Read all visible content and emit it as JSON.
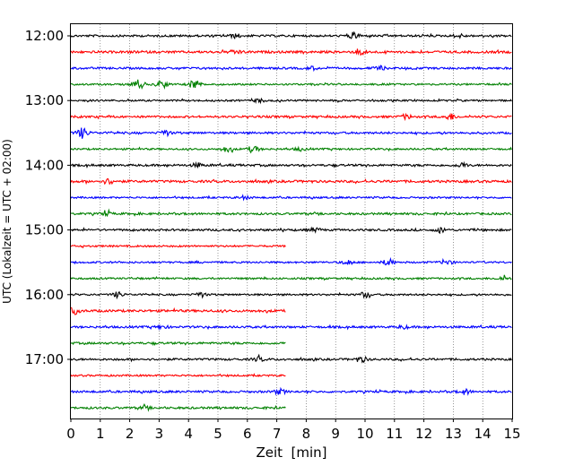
{
  "chart_data": {
    "type": "line",
    "title": "",
    "xlabel": "Zeit  [min]",
    "ylabel": "UTC (Lokalzeit = UTC + 02:00)",
    "xlim": [
      0,
      15
    ],
    "x_ticks": [
      "0",
      "1",
      "2",
      "3",
      "4",
      "5",
      "6",
      "7",
      "8",
      "9",
      "10",
      "11",
      "12",
      "13",
      "14",
      "15"
    ],
    "y_tick_labels": [
      "12:00",
      "13:00",
      "14:00",
      "15:00",
      "16:00",
      "17:00"
    ],
    "grid": "vertical dotted",
    "trace_colors": [
      "#000000",
      "#ff0000",
      "#0000ff",
      "#008000"
    ],
    "traces": [
      {
        "start": "12:00",
        "color": "#000000",
        "end_min": 15,
        "amplitude": 0.35,
        "events": [
          [
            5.6,
            0.6
          ],
          [
            9.6,
            1.0
          ],
          [
            13.2,
            0.5
          ]
        ]
      },
      {
        "start": "12:15",
        "color": "#ff0000",
        "end_min": 15,
        "amplitude": 0.4,
        "events": [
          [
            5.6,
            0.6
          ],
          [
            9.9,
            0.8
          ]
        ]
      },
      {
        "start": "12:30",
        "color": "#0000ff",
        "end_min": 15,
        "amplitude": 0.35,
        "events": [
          [
            8.2,
            0.5
          ],
          [
            10.5,
            0.6
          ]
        ]
      },
      {
        "start": "12:45",
        "color": "#008000",
        "end_min": 15,
        "amplitude": 0.3,
        "events": [
          [
            2.3,
            1.6
          ],
          [
            3.1,
            1.2
          ],
          [
            4.2,
            1.6
          ]
        ]
      },
      {
        "start": "13:00",
        "color": "#000000",
        "end_min": 15,
        "amplitude": 0.3,
        "events": [
          [
            6.4,
            0.5
          ]
        ]
      },
      {
        "start": "13:15",
        "color": "#ff0000",
        "end_min": 15,
        "amplitude": 0.35,
        "events": [
          [
            11.4,
            0.7
          ],
          [
            12.9,
            1.0
          ]
        ]
      },
      {
        "start": "13:30",
        "color": "#0000ff",
        "end_min": 15,
        "amplitude": 0.35,
        "events": [
          [
            0.4,
            1.7
          ],
          [
            3.2,
            0.9
          ]
        ]
      },
      {
        "start": "13:45",
        "color": "#008000",
        "end_min": 15,
        "amplitude": 0.3,
        "events": [
          [
            5.3,
            0.9
          ],
          [
            6.2,
            1.1
          ],
          [
            7.8,
            0.5
          ]
        ]
      },
      {
        "start": "14:00",
        "color": "#000000",
        "end_min": 15,
        "amplitude": 0.35,
        "events": [
          [
            4.3,
            0.6
          ],
          [
            13.3,
            0.7
          ]
        ]
      },
      {
        "start": "14:15",
        "color": "#ff0000",
        "end_min": 15,
        "amplitude": 0.4,
        "events": [
          [
            1.3,
            0.9
          ]
        ]
      },
      {
        "start": "14:30",
        "color": "#0000ff",
        "end_min": 15,
        "amplitude": 0.3,
        "events": [
          [
            5.9,
            0.5
          ]
        ]
      },
      {
        "start": "14:45",
        "color": "#008000",
        "end_min": 15,
        "amplitude": 0.35,
        "events": [
          [
            1.2,
            0.5
          ]
        ]
      },
      {
        "start": "15:00",
        "color": "#000000",
        "end_min": 15,
        "amplitude": 0.35,
        "events": [
          [
            8.3,
            0.6
          ],
          [
            12.6,
            0.7
          ]
        ]
      },
      {
        "start": "15:15",
        "color": "#ff0000",
        "end_min": 7.3,
        "amplitude": 0.3,
        "events": []
      },
      {
        "start": "15:30",
        "color": "#0000ff",
        "end_min": 15,
        "amplitude": 0.3,
        "events": [
          [
            9.4,
            0.8
          ],
          [
            10.8,
            1.1
          ],
          [
            12.8,
            0.7
          ]
        ]
      },
      {
        "start": "15:45",
        "color": "#008000",
        "end_min": 15,
        "amplitude": 0.3,
        "events": [
          [
            14.7,
            0.6
          ]
        ]
      },
      {
        "start": "16:00",
        "color": "#000000",
        "end_min": 15,
        "amplitude": 0.3,
        "events": [
          [
            1.6,
            0.9
          ],
          [
            4.4,
            0.8
          ],
          [
            10.0,
            0.9
          ]
        ]
      },
      {
        "start": "16:15",
        "color": "#ff0000",
        "end_min": 7.3,
        "amplitude": 0.4,
        "events": [
          [
            0.1,
            1.0
          ]
        ]
      },
      {
        "start": "16:30",
        "color": "#0000ff",
        "end_min": 15,
        "amplitude": 0.35,
        "events": [
          [
            3.1,
            0.5
          ],
          [
            11.3,
            0.5
          ]
        ]
      },
      {
        "start": "16:45",
        "color": "#008000",
        "end_min": 7.3,
        "amplitude": 0.35,
        "events": []
      },
      {
        "start": "17:00",
        "color": "#000000",
        "end_min": 15,
        "amplitude": 0.35,
        "events": [
          [
            6.4,
            0.6
          ],
          [
            9.9,
            0.8
          ]
        ]
      },
      {
        "start": "17:15",
        "color": "#ff0000",
        "end_min": 7.3,
        "amplitude": 0.3,
        "events": []
      },
      {
        "start": "17:30",
        "color": "#0000ff",
        "end_min": 15,
        "amplitude": 0.35,
        "events": [
          [
            7.1,
            0.8
          ],
          [
            13.4,
            0.8
          ]
        ]
      },
      {
        "start": "17:45",
        "color": "#008000",
        "end_min": 7.3,
        "amplitude": 0.35,
        "events": [
          [
            2.5,
            0.4
          ]
        ]
      }
    ]
  }
}
